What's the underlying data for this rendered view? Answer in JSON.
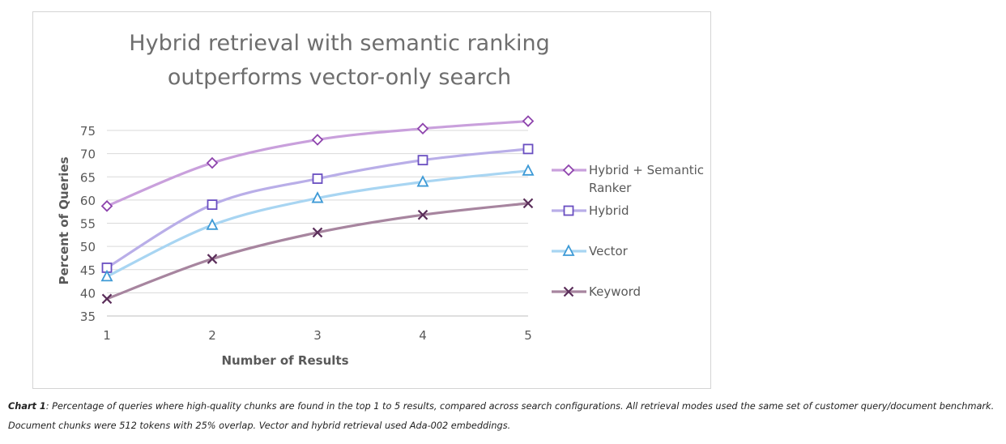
{
  "chart_data": {
    "type": "line",
    "title": "Hybrid retrieval with semantic ranking outperforms vector-only search",
    "title_lines": [
      "Hybrid retrieval with semantic ranking",
      "outperforms vector-only search"
    ],
    "xlabel": "Number of Results",
    "ylabel": "Percent of Queries",
    "x": [
      1,
      2,
      3,
      4,
      5
    ],
    "ylim": [
      35,
      75
    ],
    "yticks": [
      35,
      40,
      45,
      50,
      55,
      60,
      65,
      70,
      75
    ],
    "grid": true,
    "legend_position": "right",
    "series": [
      {
        "name": "Hybrid + Semantic Ranker",
        "legend_lines": [
          "Hybrid + Semantic",
          "Ranker"
        ],
        "values": [
          58.7,
          68.0,
          73.0,
          75.4,
          77.0
        ],
        "line_color": "#c9a0dc",
        "marker_color": "#8e44ad",
        "marker": "diamond"
      },
      {
        "name": "Hybrid",
        "legend_lines": [
          "Hybrid"
        ],
        "values": [
          45.4,
          59.0,
          64.6,
          68.6,
          71.0
        ],
        "line_color": "#b9aee8",
        "marker_color": "#6a4fc1",
        "marker": "square"
      },
      {
        "name": "Vector",
        "legend_lines": [
          "Vector"
        ],
        "values": [
          43.5,
          54.6,
          60.4,
          63.9,
          66.3
        ],
        "line_color": "#a8d5f2",
        "marker_color": "#3d9ad6",
        "marker": "triangle"
      },
      {
        "name": "Keyword",
        "legend_lines": [
          "Keyword"
        ],
        "values": [
          38.7,
          47.3,
          53.0,
          56.8,
          59.3
        ],
        "line_color": "#a7859f",
        "marker_color": "#5b2e5a",
        "marker": "x"
      }
    ]
  },
  "caption": {
    "label": "Chart 1",
    "text": ": Percentage of queries where high-quality chunks are found in the top 1 to 5 results, compared across search configurations. All retrieval modes used the same set of customer query/document benchmark. Document chunks were 512 tokens with 25% overlap.  Vector and hybrid retrieval used Ada-002 embeddings."
  }
}
